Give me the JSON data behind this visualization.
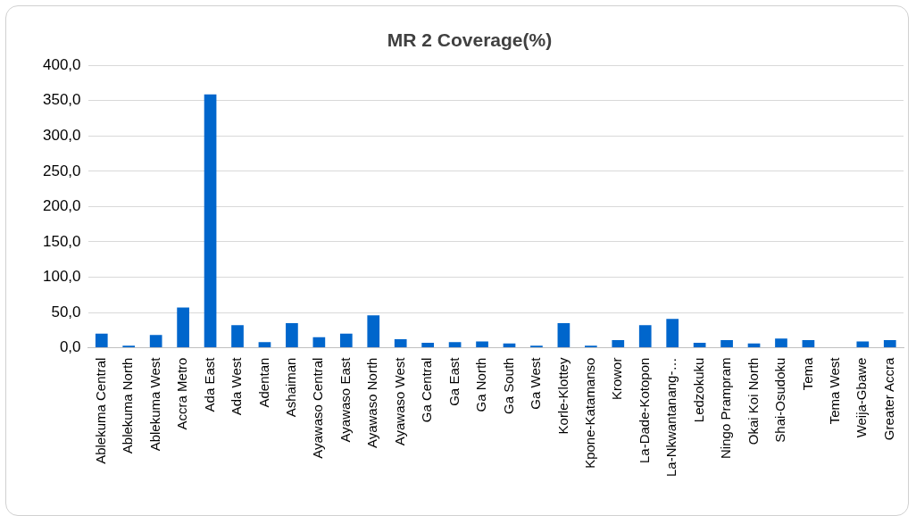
{
  "chart_data": {
    "type": "bar",
    "title": "MR 2 Coverage(%)",
    "categories": [
      "Ablekuma Central",
      "Ablekuma North",
      "Ablekuma West",
      "Accra Metro",
      "Ada East",
      "Ada West",
      "Adentan",
      "Ashaiman",
      "Ayawaso Central",
      "Ayawaso East",
      "Ayawaso North",
      "Ayawaso West",
      "Ga Central",
      "Ga East",
      "Ga North",
      "Ga South",
      "Ga West",
      "Korle-Klottey",
      "Kpone-Katamanso",
      "Krowor",
      "La-Dade-Kotopon",
      "La-Nkwantanang-…",
      "Ledzokuku",
      "Ningo Prampram",
      "Okai Koi North",
      "Shai-Osudoku",
      "Tema",
      "Tema West",
      "Weija-Gbawe",
      "Greater Accra"
    ],
    "values": [
      20,
      3,
      18,
      57,
      359,
      32,
      8,
      35,
      15,
      20,
      46,
      12,
      7,
      8,
      9,
      6,
      3,
      35,
      3,
      11,
      32,
      41,
      7,
      11,
      6,
      13,
      11,
      0,
      9,
      11
    ],
    "color": "#0066cc",
    "ylim": [
      0,
      400
    ],
    "yticks": [
      {
        "value": 0,
        "label": "0,0"
      },
      {
        "value": 50,
        "label": "50,0"
      },
      {
        "value": 100,
        "label": "100,0"
      },
      {
        "value": 150,
        "label": "150,0"
      },
      {
        "value": 200,
        "label": "200,0"
      },
      {
        "value": 250,
        "label": "250,0"
      },
      {
        "value": 300,
        "label": "300,0"
      },
      {
        "value": 350,
        "label": "350,0"
      },
      {
        "value": 400,
        "label": "400,0"
      }
    ],
    "grid": "y"
  }
}
